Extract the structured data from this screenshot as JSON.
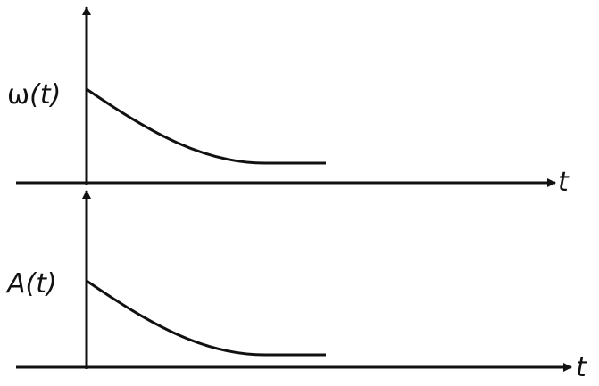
{
  "plots": [
    {
      "y_label_symbol": "ω",
      "y_label_arg": "(t)",
      "x_label": "t",
      "curve": "exponential-decay"
    },
    {
      "y_label_symbol": "A",
      "y_label_arg": "(t)",
      "x_label": "t",
      "curve": "exponential-decay"
    }
  ],
  "colors": {
    "line": "#111111",
    "background": "#ffffff"
  }
}
